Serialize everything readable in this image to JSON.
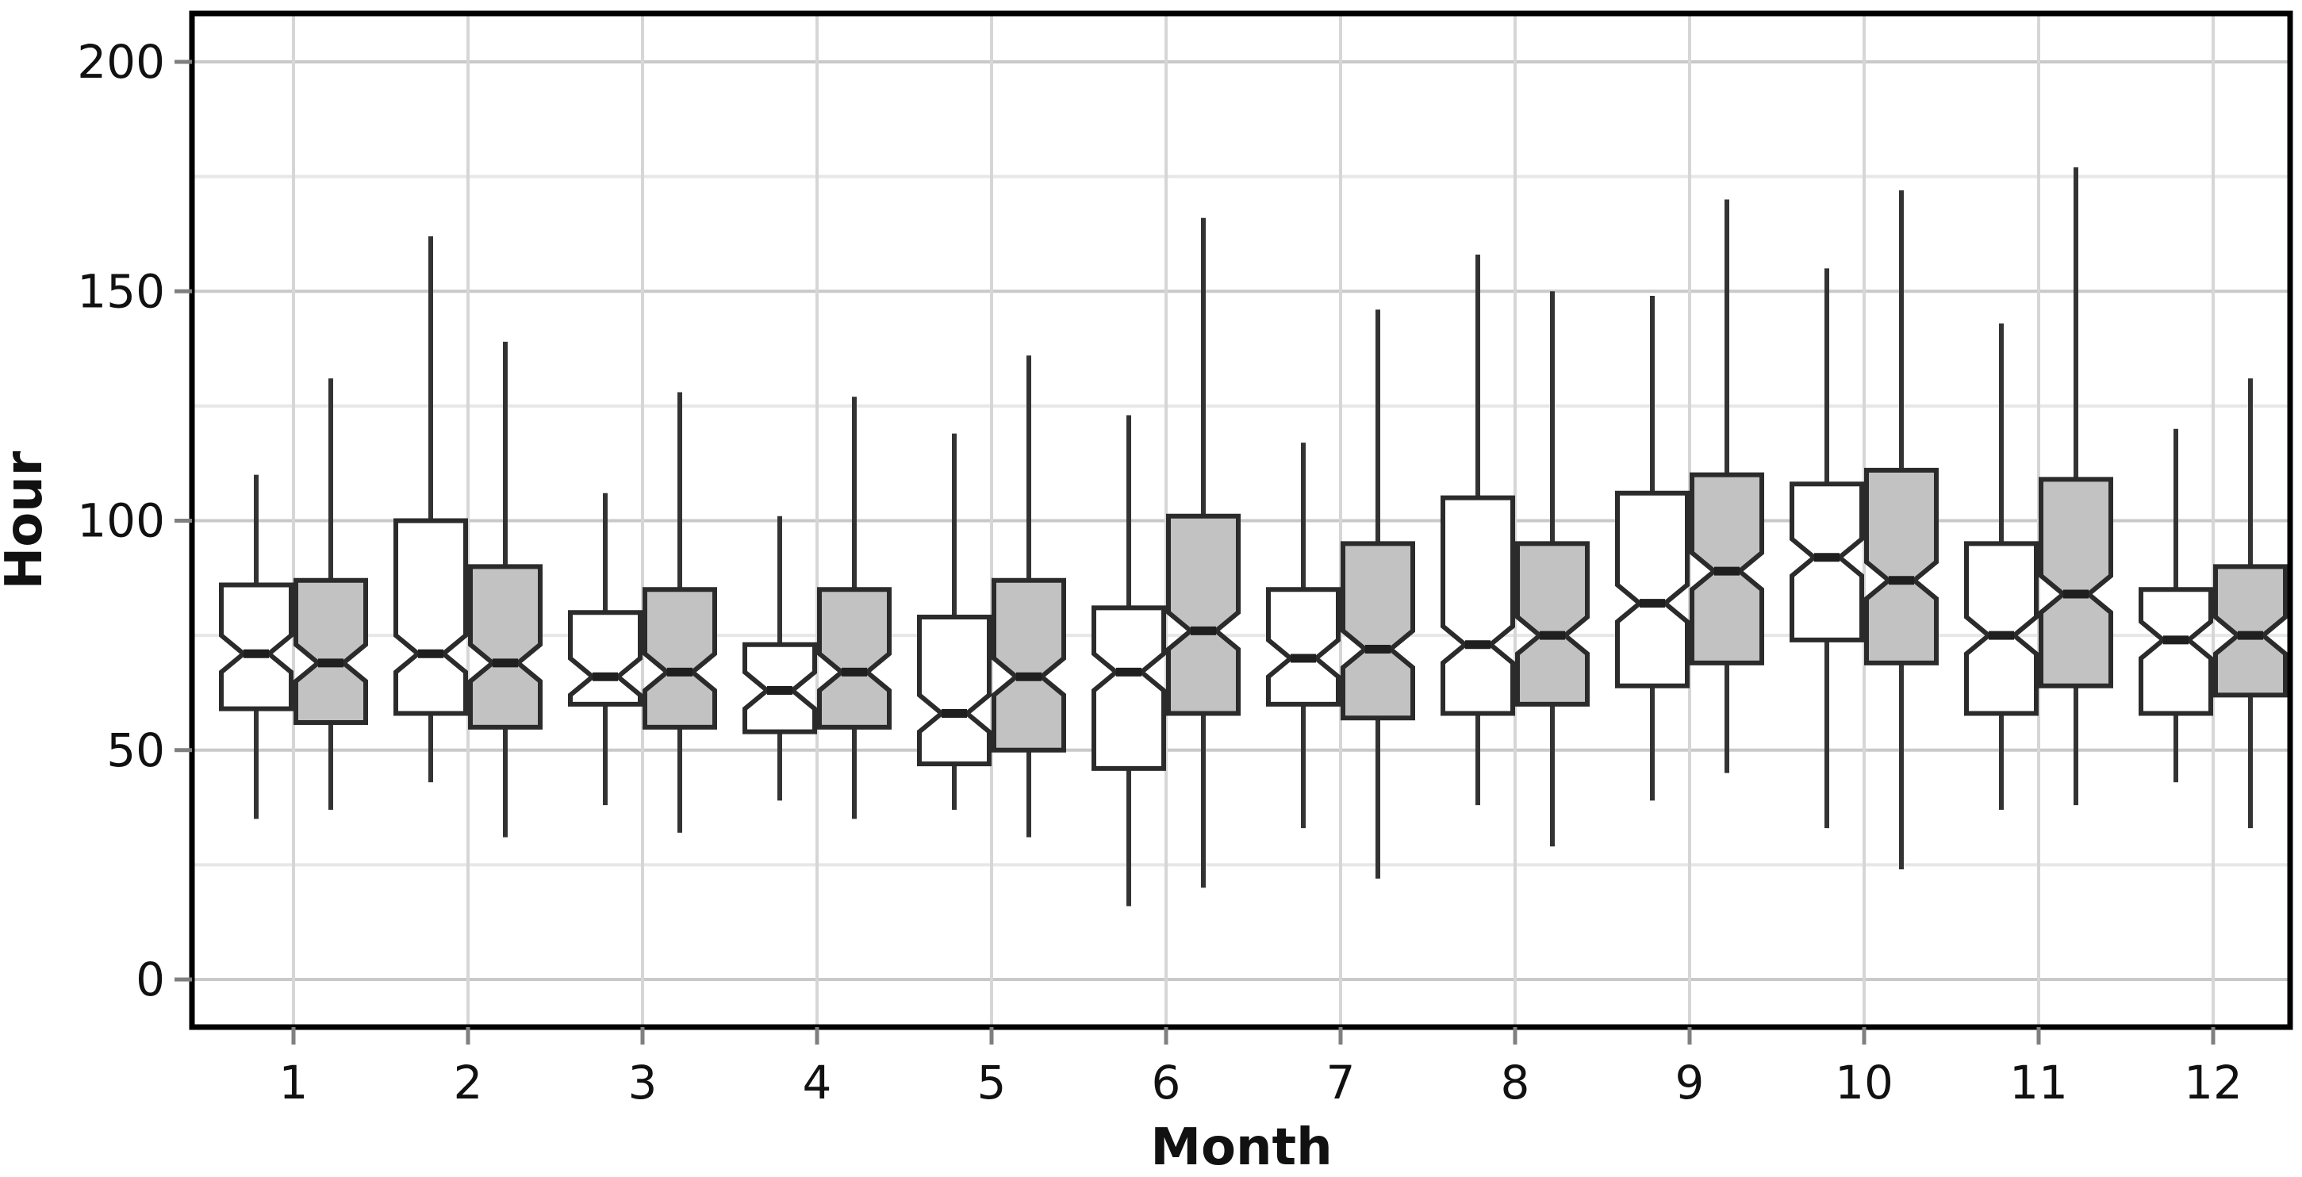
{
  "chart_data": {
    "type": "boxplot",
    "title": "",
    "xlabel": "Month",
    "ylabel": "Hour",
    "x_categories": [
      "1",
      "2",
      "3",
      "4",
      "5",
      "6",
      "7",
      "8",
      "9",
      "10",
      "11",
      "12"
    ],
    "y_ticks": [
      0,
      50,
      100,
      150,
      200
    ],
    "y_minor_ticks": [
      25,
      75,
      125,
      175
    ],
    "ylim": [
      -10,
      210
    ],
    "grid": "on",
    "legend": "none",
    "notched": true,
    "notch_half_height": 4,
    "series": [
      {
        "name": "white",
        "fill": "#ffffff",
        "boxes": [
          {
            "month": 1,
            "whisker_low": 35,
            "q1": 59,
            "median": 71,
            "q3": 86,
            "whisker_high": 110
          },
          {
            "month": 2,
            "whisker_low": 43,
            "q1": 58,
            "median": 71,
            "q3": 100,
            "whisker_high": 162
          },
          {
            "month": 3,
            "whisker_low": 38,
            "q1": 60,
            "median": 66,
            "q3": 80,
            "whisker_high": 106
          },
          {
            "month": 4,
            "whisker_low": 39,
            "q1": 54,
            "median": 63,
            "q3": 73,
            "whisker_high": 101
          },
          {
            "month": 5,
            "whisker_low": 37,
            "q1": 47,
            "median": 58,
            "q3": 79,
            "whisker_high": 119
          },
          {
            "month": 6,
            "whisker_low": 16,
            "q1": 46,
            "median": 67,
            "q3": 81,
            "whisker_high": 123
          },
          {
            "month": 7,
            "whisker_low": 33,
            "q1": 60,
            "median": 70,
            "q3": 85,
            "whisker_high": 117
          },
          {
            "month": 8,
            "whisker_low": 38,
            "q1": 58,
            "median": 73,
            "q3": 105,
            "whisker_high": 158
          },
          {
            "month": 9,
            "whisker_low": 39,
            "q1": 64,
            "median": 82,
            "q3": 106,
            "whisker_high": 149
          },
          {
            "month": 10,
            "whisker_low": 33,
            "q1": 74,
            "median": 92,
            "q3": 108,
            "whisker_high": 155
          },
          {
            "month": 11,
            "whisker_low": 37,
            "q1": 58,
            "median": 75,
            "q3": 95,
            "whisker_high": 143
          },
          {
            "month": 12,
            "whisker_low": 43,
            "q1": 58,
            "median": 74,
            "q3": 85,
            "whisker_high": 120
          }
        ]
      },
      {
        "name": "gray",
        "fill": "#c2c2c2",
        "boxes": [
          {
            "month": 1,
            "whisker_low": 37,
            "q1": 56,
            "median": 69,
            "q3": 87,
            "whisker_high": 131
          },
          {
            "month": 2,
            "whisker_low": 31,
            "q1": 55,
            "median": 69,
            "q3": 90,
            "whisker_high": 139
          },
          {
            "month": 3,
            "whisker_low": 32,
            "q1": 55,
            "median": 67,
            "q3": 85,
            "whisker_high": 128
          },
          {
            "month": 4,
            "whisker_low": 35,
            "q1": 55,
            "median": 67,
            "q3": 85,
            "whisker_high": 127
          },
          {
            "month": 5,
            "whisker_low": 31,
            "q1": 50,
            "median": 66,
            "q3": 87,
            "whisker_high": 136
          },
          {
            "month": 6,
            "whisker_low": 20,
            "q1": 58,
            "median": 76,
            "q3": 101,
            "whisker_high": 166
          },
          {
            "month": 7,
            "whisker_low": 22,
            "q1": 57,
            "median": 72,
            "q3": 95,
            "whisker_high": 146
          },
          {
            "month": 8,
            "whisker_low": 29,
            "q1": 60,
            "median": 75,
            "q3": 95,
            "whisker_high": 150
          },
          {
            "month": 9,
            "whisker_low": 45,
            "q1": 69,
            "median": 89,
            "q3": 110,
            "whisker_high": 170
          },
          {
            "month": 10,
            "whisker_low": 24,
            "q1": 69,
            "median": 87,
            "q3": 111,
            "whisker_high": 172
          },
          {
            "month": 11,
            "whisker_low": 38,
            "q1": 64,
            "median": 84,
            "q3": 109,
            "whisker_high": 177
          },
          {
            "month": 12,
            "whisker_low": 33,
            "q1": 62,
            "median": 75,
            "q3": 90,
            "whisker_high": 131
          }
        ]
      }
    ],
    "colors": {
      "box_stroke": "#2b2b2b",
      "median": "#1f1f1f",
      "whisker": "#333333",
      "grid_major": "#c9c9c9",
      "grid_minor": "#e7e7e7",
      "grid_vertical": "#d6d6d6",
      "panel_border": "#000000",
      "tick_mark": "#7f7f7f",
      "text": "#111111",
      "background": "#ffffff"
    }
  }
}
